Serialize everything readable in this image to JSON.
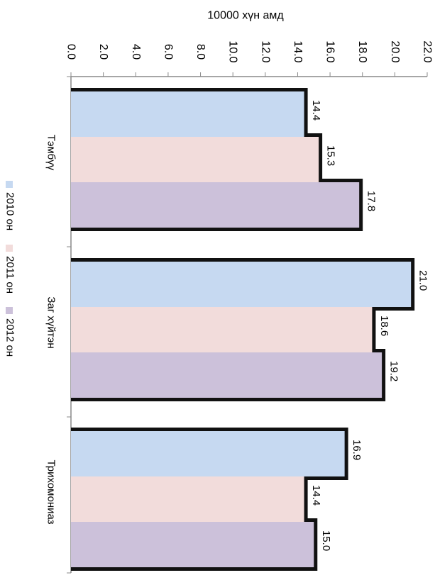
{
  "chart_data": {
    "type": "bar",
    "orientation": "horizontal",
    "rotation": "rotated 90° clockwise",
    "value_axis_label": "10000 хүн амд",
    "value_axis_range": [
      0,
      22
    ],
    "value_ticks": [
      "0.0",
      "2.0",
      "4.0",
      "6.0",
      "8.0",
      "10.0",
      "12.0",
      "14.0",
      "16.0",
      "18.0",
      "20.0",
      "22.0"
    ],
    "categories": [
      "Тэмбүү",
      "Заг хүйтэн",
      "Трихомониаз"
    ],
    "series": [
      {
        "name": "2010 он",
        "values": [
          14.4,
          21.0,
          16.9
        ],
        "labels": [
          "14.4",
          "21.0",
          "16.9"
        ],
        "color": "#c6d9f1"
      },
      {
        "name": "2011 он",
        "values": [
          15.3,
          18.6,
          14.4
        ],
        "labels": [
          "15.3",
          "18.6",
          "14.4"
        ],
        "color": "#f2dcdb"
      },
      {
        "name": "2012 он",
        "values": [
          17.8,
          19.2,
          15.0
        ],
        "labels": [
          "17.8",
          "19.2",
          "15.0"
        ],
        "color": "#ccc1da"
      }
    ],
    "legend_position": "left",
    "grid": false
  }
}
